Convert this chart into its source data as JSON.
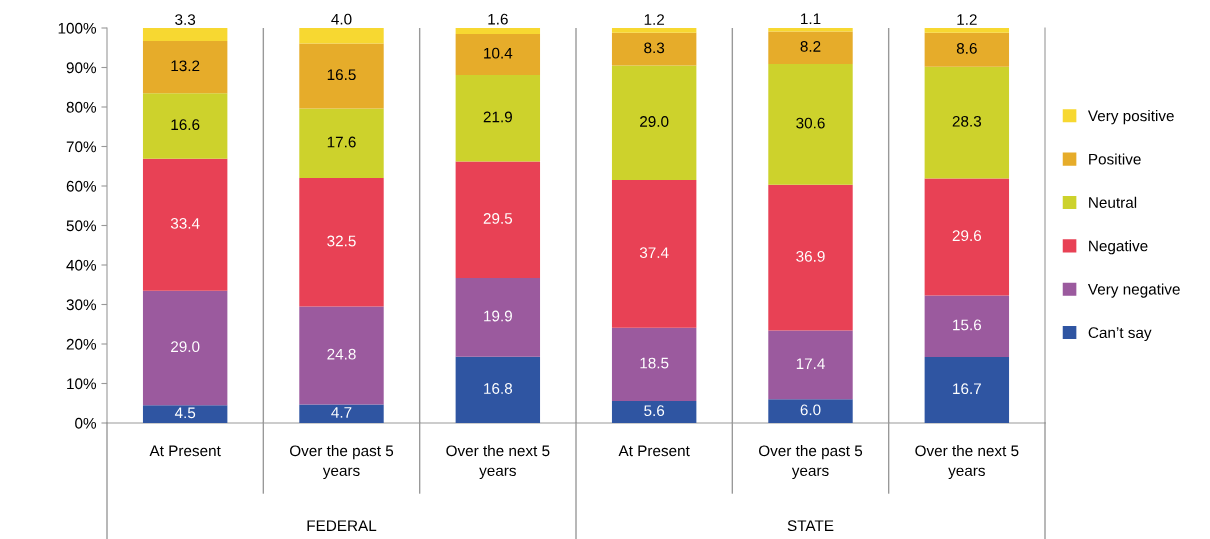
{
  "chart_data": {
    "type": "bar",
    "stacked": true,
    "categories": [
      "At Present",
      "Over the past 5 years",
      "Over the next 5 years",
      "At Present",
      "Over the past 5 years",
      "Over the next 5 years"
    ],
    "series": [
      {
        "name": "Can’t say",
        "color": "#2f55a2",
        "values": [
          4.5,
          4.7,
          16.8,
          5.6,
          6.0,
          16.7
        ],
        "value_labels": [
          "4.5",
          "4.7",
          "16.8",
          "5.6",
          "6.0",
          "16.7"
        ]
      },
      {
        "name": "Very negative",
        "color": "#9b5a9e",
        "values": [
          29.0,
          24.8,
          19.9,
          18.5,
          17.4,
          15.6
        ],
        "value_labels": [
          "29.0",
          "24.8",
          "19.9",
          "18.5",
          "17.4",
          "15.6"
        ]
      },
      {
        "name": "Negative",
        "color": "#e84155",
        "values": [
          33.4,
          32.5,
          29.5,
          37.4,
          36.9,
          29.6
        ],
        "value_labels": [
          "33.4",
          "32.5",
          "29.5",
          "37.4",
          "36.9",
          "29.6"
        ]
      },
      {
        "name": "Neutral",
        "color": "#cdd22c",
        "values": [
          16.6,
          17.6,
          21.9,
          29.0,
          30.6,
          28.3
        ],
        "value_labels": [
          "16.6",
          "17.6",
          "21.9",
          "29.0",
          "30.6",
          "28.3"
        ]
      },
      {
        "name": "Positive",
        "color": "#e6ac2a",
        "values": [
          13.2,
          16.5,
          10.4,
          8.3,
          8.2,
          8.6
        ],
        "value_labels": [
          "13.2",
          "16.5",
          "10.4",
          "8.3",
          "8.2",
          "8.6"
        ]
      },
      {
        "name": "Very positive",
        "color": "#f7d831",
        "values": [
          3.3,
          4.0,
          1.6,
          1.2,
          1.1,
          1.2
        ],
        "value_labels": [
          "3.3",
          "4.0",
          "1.6",
          "1.2",
          "1.1",
          "1.2"
        ]
      }
    ],
    "annotations": [
      "FEDERAL",
      "STATE"
    ],
    "ylim": [
      0,
      100
    ],
    "yticks": [
      {
        "value": 0,
        "label": "0%"
      },
      {
        "value": 10,
        "label": "10%"
      },
      {
        "value": 20,
        "label": "20%"
      },
      {
        "value": 30,
        "label": "30%"
      },
      {
        "value": 40,
        "label": "40%"
      },
      {
        "value": 50,
        "label": "50%"
      },
      {
        "value": 60,
        "label": "60%"
      },
      {
        "value": 70,
        "label": "70%"
      },
      {
        "value": 80,
        "label": "80%"
      },
      {
        "value": 90,
        "label": "90%"
      },
      {
        "value": 100,
        "label": "100%"
      }
    ],
    "grid": "x",
    "legend": "right"
  }
}
